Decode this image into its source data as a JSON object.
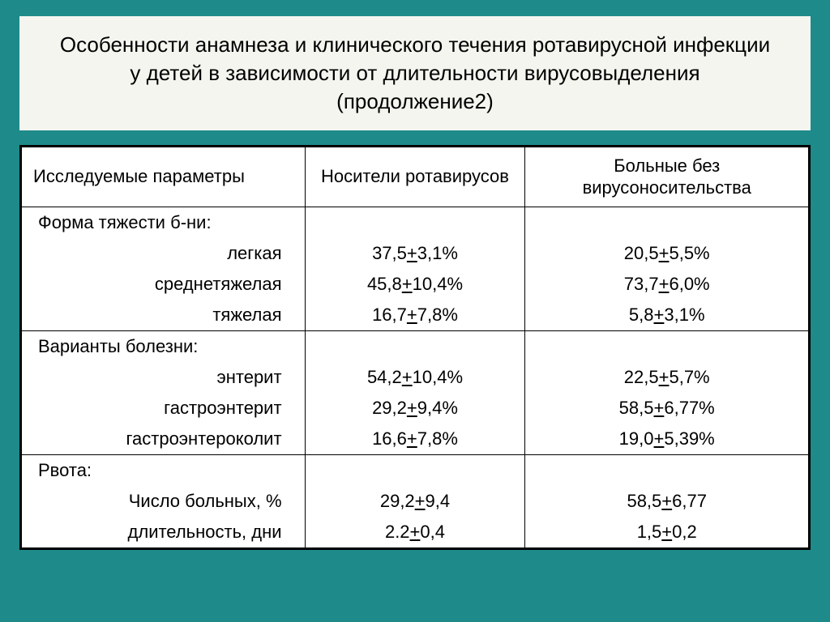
{
  "title": "Особенности анамнеза и клинического течения ротавирусной инфекции у детей в зависимости от длительности вирусовыделения (продолжение2)",
  "columns": {
    "param": "Исследуемые параметры",
    "carriers": "Носители ротавирусов",
    "no_carriers": "Больные без вирусоносительства"
  },
  "groups": [
    {
      "header": "Форма тяжести б-ни:",
      "rows": [
        {
          "label": "легкая",
          "carriers": "37,5+3,1%",
          "no_carriers": "20,5+5,5%"
        },
        {
          "label": "среднетяжелая",
          "carriers": "45,8+10,4%",
          "no_carriers": "73,7+6,0%"
        },
        {
          "label": "тяжелая",
          "carriers": "16,7+7,8%",
          "no_carriers": "5,8+3,1%"
        }
      ]
    },
    {
      "header": "Варианты болезни:",
      "rows": [
        {
          "label": "энтерит",
          "carriers": "54,2+10,4%",
          "no_carriers": "22,5+5,7%"
        },
        {
          "label": "гастроэнтерит",
          "carriers": "29,2+9,4%",
          "no_carriers": "58,5+6,77%"
        },
        {
          "label": "гастроэнтероколит",
          "carriers": "16,6+7,8%",
          "no_carriers": "19,0+5,39%"
        }
      ]
    },
    {
      "header": "Рвота:",
      "rows": [
        {
          "label": "Число больных, %",
          "carriers": "29,2+9,4",
          "no_carriers": "58,5+6,77"
        },
        {
          "label": "длительность, дни",
          "carriers": "2.2+0,4",
          "no_carriers": "1,5+0,2"
        }
      ]
    }
  ]
}
